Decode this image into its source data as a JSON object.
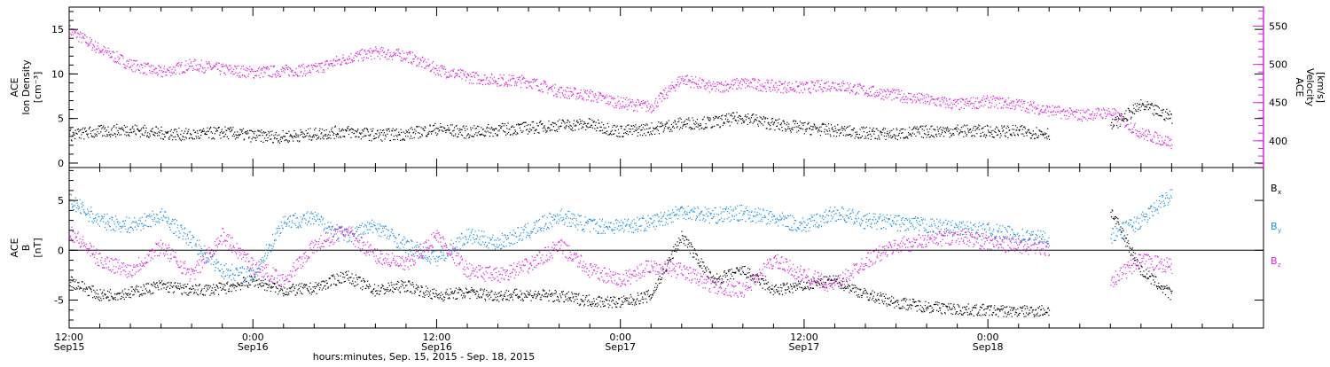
{
  "chart_data": [
    {
      "type": "scatter",
      "panel": "top",
      "left_axis": {
        "label_lines": [
          "ACE",
          "Ion Density",
          "[cm⁻³]"
        ],
        "ticks": [
          0,
          5,
          10,
          15
        ],
        "range": [
          -0.5,
          17.5
        ]
      },
      "right_axis": {
        "label_lines": [
          "ACE",
          "Velocity",
          "[km/s]"
        ],
        "ticks": [
          400,
          450,
          500,
          550
        ],
        "range": [
          365,
          575
        ],
        "color": "#dd22dd"
      },
      "series": [
        {
          "quantity": "density",
          "axis": "left",
          "color": "#000000",
          "x": [
            0,
            2,
            4,
            6,
            8,
            10,
            12,
            14,
            16,
            18,
            20,
            22,
            24,
            26,
            28,
            30,
            32,
            34,
            36,
            38,
            40,
            42,
            44,
            46,
            48,
            50,
            52,
            54,
            56,
            58,
            60,
            62,
            64,
            66,
            68,
            70,
            72
          ],
          "y": [
            3.2,
            3.6,
            3.8,
            3.4,
            3.2,
            3.5,
            3.1,
            3.0,
            3.3,
            3.6,
            3.2,
            3.3,
            3.9,
            3.5,
            3.8,
            4.0,
            4.3,
            4.4,
            3.6,
            3.9,
            4.5,
            4.6,
            5.2,
            4.4,
            4.0,
            3.7,
            3.4,
            3.3,
            3.6,
            3.7,
            3.6,
            3.6,
            3.4,
            null,
            4.2,
            6.5,
            5.2
          ]
        },
        {
          "quantity": "velocity",
          "axis": "right",
          "color": "#dd22dd",
          "x": [
            0,
            2,
            4,
            6,
            8,
            10,
            12,
            14,
            16,
            18,
            20,
            22,
            24,
            26,
            28,
            30,
            32,
            34,
            36,
            38,
            40,
            42,
            44,
            46,
            48,
            50,
            52,
            54,
            56,
            58,
            60,
            62,
            64,
            66,
            68,
            70,
            72
          ],
          "y": [
            545,
            520,
            500,
            490,
            500,
            494,
            490,
            492,
            494,
            508,
            516,
            512,
            494,
            484,
            480,
            478,
            465,
            460,
            450,
            445,
            482,
            470,
            476,
            472,
            470,
            474,
            466,
            460,
            454,
            448,
            452,
            448,
            440,
            434,
            438,
            410,
            398
          ]
        }
      ]
    },
    {
      "type": "scatter",
      "panel": "bottom",
      "left_axis": {
        "label_lines": [
          "ACE",
          "B",
          "[nT]"
        ],
        "ticks": [
          -5,
          0,
          5
        ],
        "range": [
          -7.8,
          8.3
        ]
      },
      "legend": [
        {
          "label": "B",
          "subscript": "x",
          "color": "#000000"
        },
        {
          "label": "B",
          "subscript": "y",
          "color": "#1a8fe0"
        },
        {
          "label": "B",
          "subscript": "z",
          "color": "#dd22dd"
        }
      ],
      "series": [
        {
          "label": "Bx",
          "color": "#000000",
          "x": [
            0,
            2,
            4,
            6,
            8,
            10,
            12,
            14,
            16,
            18,
            20,
            22,
            24,
            26,
            28,
            30,
            32,
            34,
            36,
            38,
            40,
            42,
            44,
            46,
            48,
            50,
            52,
            54,
            56,
            58,
            60,
            62,
            64,
            66,
            68,
            70,
            72
          ],
          "y": [
            -3.0,
            -4.5,
            -4.2,
            -3.5,
            -4.0,
            -3.8,
            -3.0,
            -4.0,
            -3.8,
            -2.5,
            -4.0,
            -3.5,
            -4.5,
            -4.2,
            -4.5,
            -4.4,
            -4.6,
            -5.0,
            -5.2,
            -4.5,
            1.5,
            -3.0,
            -2.0,
            -4.0,
            -3.5,
            -3.0,
            -4.4,
            -5.2,
            -5.6,
            -5.9,
            -6.0,
            -6.1,
            -6.0,
            null,
            4.0,
            -2.0,
            -4.5
          ]
        },
        {
          "label": "By",
          "color": "#1a8fe0",
          "x": [
            0,
            2,
            4,
            6,
            8,
            10,
            12,
            14,
            16,
            18,
            20,
            22,
            24,
            26,
            28,
            30,
            32,
            34,
            36,
            38,
            40,
            42,
            44,
            46,
            48,
            50,
            52,
            54,
            56,
            58,
            60,
            62,
            64,
            66,
            68,
            70,
            72
          ],
          "y": [
            5.0,
            3.0,
            2.5,
            3.5,
            1.0,
            -2.0,
            -2.5,
            3.0,
            3.2,
            1.5,
            2.5,
            0.5,
            -0.8,
            1.5,
            0.8,
            2.0,
            3.5,
            2.5,
            2.5,
            2.8,
            4.0,
            3.5,
            3.8,
            3.2,
            2.5,
            3.8,
            3.0,
            2.8,
            2.5,
            2.2,
            2.0,
            1.5,
            1.2,
            null,
            1.5,
            3.0,
            5.8
          ]
        },
        {
          "label": "Bz",
          "color": "#dd22dd",
          "x": [
            0,
            2,
            4,
            6,
            8,
            10,
            12,
            14,
            16,
            18,
            20,
            22,
            24,
            26,
            28,
            30,
            32,
            34,
            36,
            38,
            40,
            42,
            44,
            46,
            48,
            50,
            52,
            54,
            56,
            58,
            60,
            62,
            64,
            66,
            68,
            70,
            72
          ],
          "y": [
            2.0,
            -1.0,
            -2.0,
            0.5,
            -2.5,
            1.5,
            -1.5,
            -3.0,
            0.5,
            2.0,
            -0.5,
            -1.5,
            1.5,
            -2.0,
            -2.5,
            -1.5,
            0.5,
            -2.0,
            -3.0,
            -1.5,
            -2.0,
            -3.5,
            -4.0,
            -1.0,
            -2.5,
            -3.5,
            -1.0,
            0.5,
            1.0,
            1.5,
            0.8,
            0.5,
            0.2,
            null,
            -3.0,
            -1.0,
            -1.5
          ]
        }
      ]
    }
  ],
  "x_axis": {
    "unit": "hours since Sep 15 12:00 UT",
    "range": [
      0,
      78
    ],
    "major_ticks": [
      {
        "hour": 0,
        "time": "12:00",
        "date": "Sep15"
      },
      {
        "hour": 12,
        "time": "0:00",
        "date": "Sep16"
      },
      {
        "hour": 24,
        "time": "12:00",
        "date": "Sep16"
      },
      {
        "hour": 36,
        "time": "0:00",
        "date": "Sep17"
      },
      {
        "hour": 48,
        "time": "12:00",
        "date": "Sep17"
      },
      {
        "hour": 60,
        "time": "0:00",
        "date": "Sep18"
      }
    ],
    "minor_tick_every_hours": 2,
    "title": "hours:minutes, Sep. 15, 2015 - Sep. 18, 2015"
  }
}
